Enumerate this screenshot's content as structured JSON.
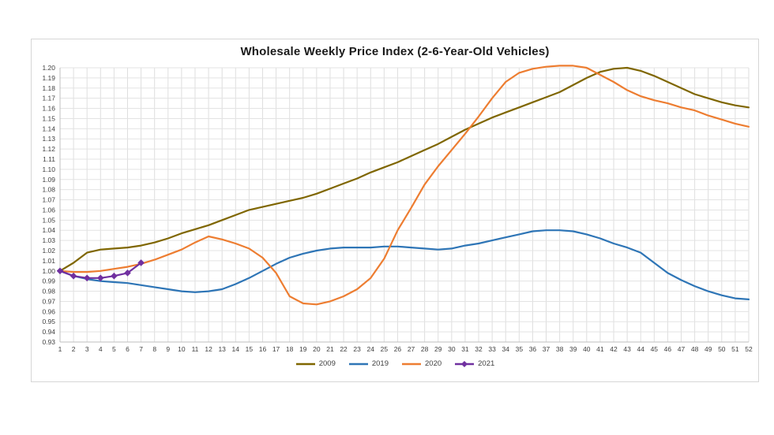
{
  "chart_data": {
    "type": "line",
    "title": "Wholesale Weekly Price Index (2-6-Year-Old Vehicles)",
    "xlabel": "",
    "ylabel": "",
    "x": [
      1,
      2,
      3,
      4,
      5,
      6,
      7,
      8,
      9,
      10,
      11,
      12,
      13,
      14,
      15,
      16,
      17,
      18,
      19,
      20,
      21,
      22,
      23,
      24,
      25,
      26,
      27,
      28,
      29,
      30,
      31,
      32,
      33,
      34,
      35,
      36,
      37,
      38,
      39,
      40,
      41,
      42,
      43,
      44,
      45,
      46,
      47,
      48,
      49,
      50,
      51,
      52
    ],
    "ylim": [
      0.93,
      1.2
    ],
    "ytick_step": 0.01,
    "grid": true,
    "legend_position": "bottom",
    "series": [
      {
        "name": "2009",
        "color": "#7F6600",
        "marker": "none",
        "values": [
          1.0,
          1.008,
          1.018,
          1.021,
          1.022,
          1.023,
          1.025,
          1.028,
          1.032,
          1.037,
          1.041,
          1.045,
          1.05,
          1.055,
          1.06,
          1.063,
          1.066,
          1.069,
          1.072,
          1.076,
          1.081,
          1.086,
          1.091,
          1.097,
          1.102,
          1.107,
          1.113,
          1.119,
          1.125,
          1.132,
          1.139,
          1.145,
          1.151,
          1.156,
          1.161,
          1.166,
          1.171,
          1.176,
          1.183,
          1.19,
          1.196,
          1.199,
          1.2,
          1.197,
          1.192,
          1.186,
          1.18,
          1.174,
          1.17,
          1.166,
          1.163,
          1.161
        ]
      },
      {
        "name": "2019",
        "color": "#2E75B6",
        "marker": "none",
        "values": [
          1.0,
          0.995,
          0.992,
          0.99,
          0.989,
          0.988,
          0.986,
          0.984,
          0.982,
          0.98,
          0.979,
          0.98,
          0.982,
          0.987,
          0.993,
          1.0,
          1.007,
          1.013,
          1.017,
          1.02,
          1.022,
          1.023,
          1.023,
          1.023,
          1.024,
          1.024,
          1.023,
          1.022,
          1.021,
          1.022,
          1.025,
          1.027,
          1.03,
          1.033,
          1.036,
          1.039,
          1.04,
          1.04,
          1.039,
          1.036,
          1.032,
          1.027,
          1.023,
          1.018,
          1.008,
          0.998,
          0.991,
          0.985,
          0.98,
          0.976,
          0.973,
          0.972
        ]
      },
      {
        "name": "2020",
        "color": "#ED7D31",
        "marker": "none",
        "values": [
          1.0,
          0.999,
          0.999,
          1.0,
          1.002,
          1.004,
          1.007,
          1.011,
          1.016,
          1.021,
          1.028,
          1.034,
          1.031,
          1.027,
          1.022,
          1.013,
          0.998,
          0.975,
          0.968,
          0.967,
          0.97,
          0.975,
          0.982,
          0.993,
          1.012,
          1.04,
          1.062,
          1.085,
          1.103,
          1.119,
          1.135,
          1.152,
          1.17,
          1.186,
          1.195,
          1.199,
          1.201,
          1.202,
          1.202,
          1.2,
          1.193,
          1.186,
          1.178,
          1.172,
          1.168,
          1.165,
          1.161,
          1.158,
          1.153,
          1.149,
          1.145,
          1.142
        ]
      },
      {
        "name": "2021",
        "color": "#7030A0",
        "marker": "diamond",
        "values": [
          1.0,
          0.995,
          0.993,
          0.993,
          0.995,
          0.998,
          1.008
        ]
      }
    ]
  }
}
